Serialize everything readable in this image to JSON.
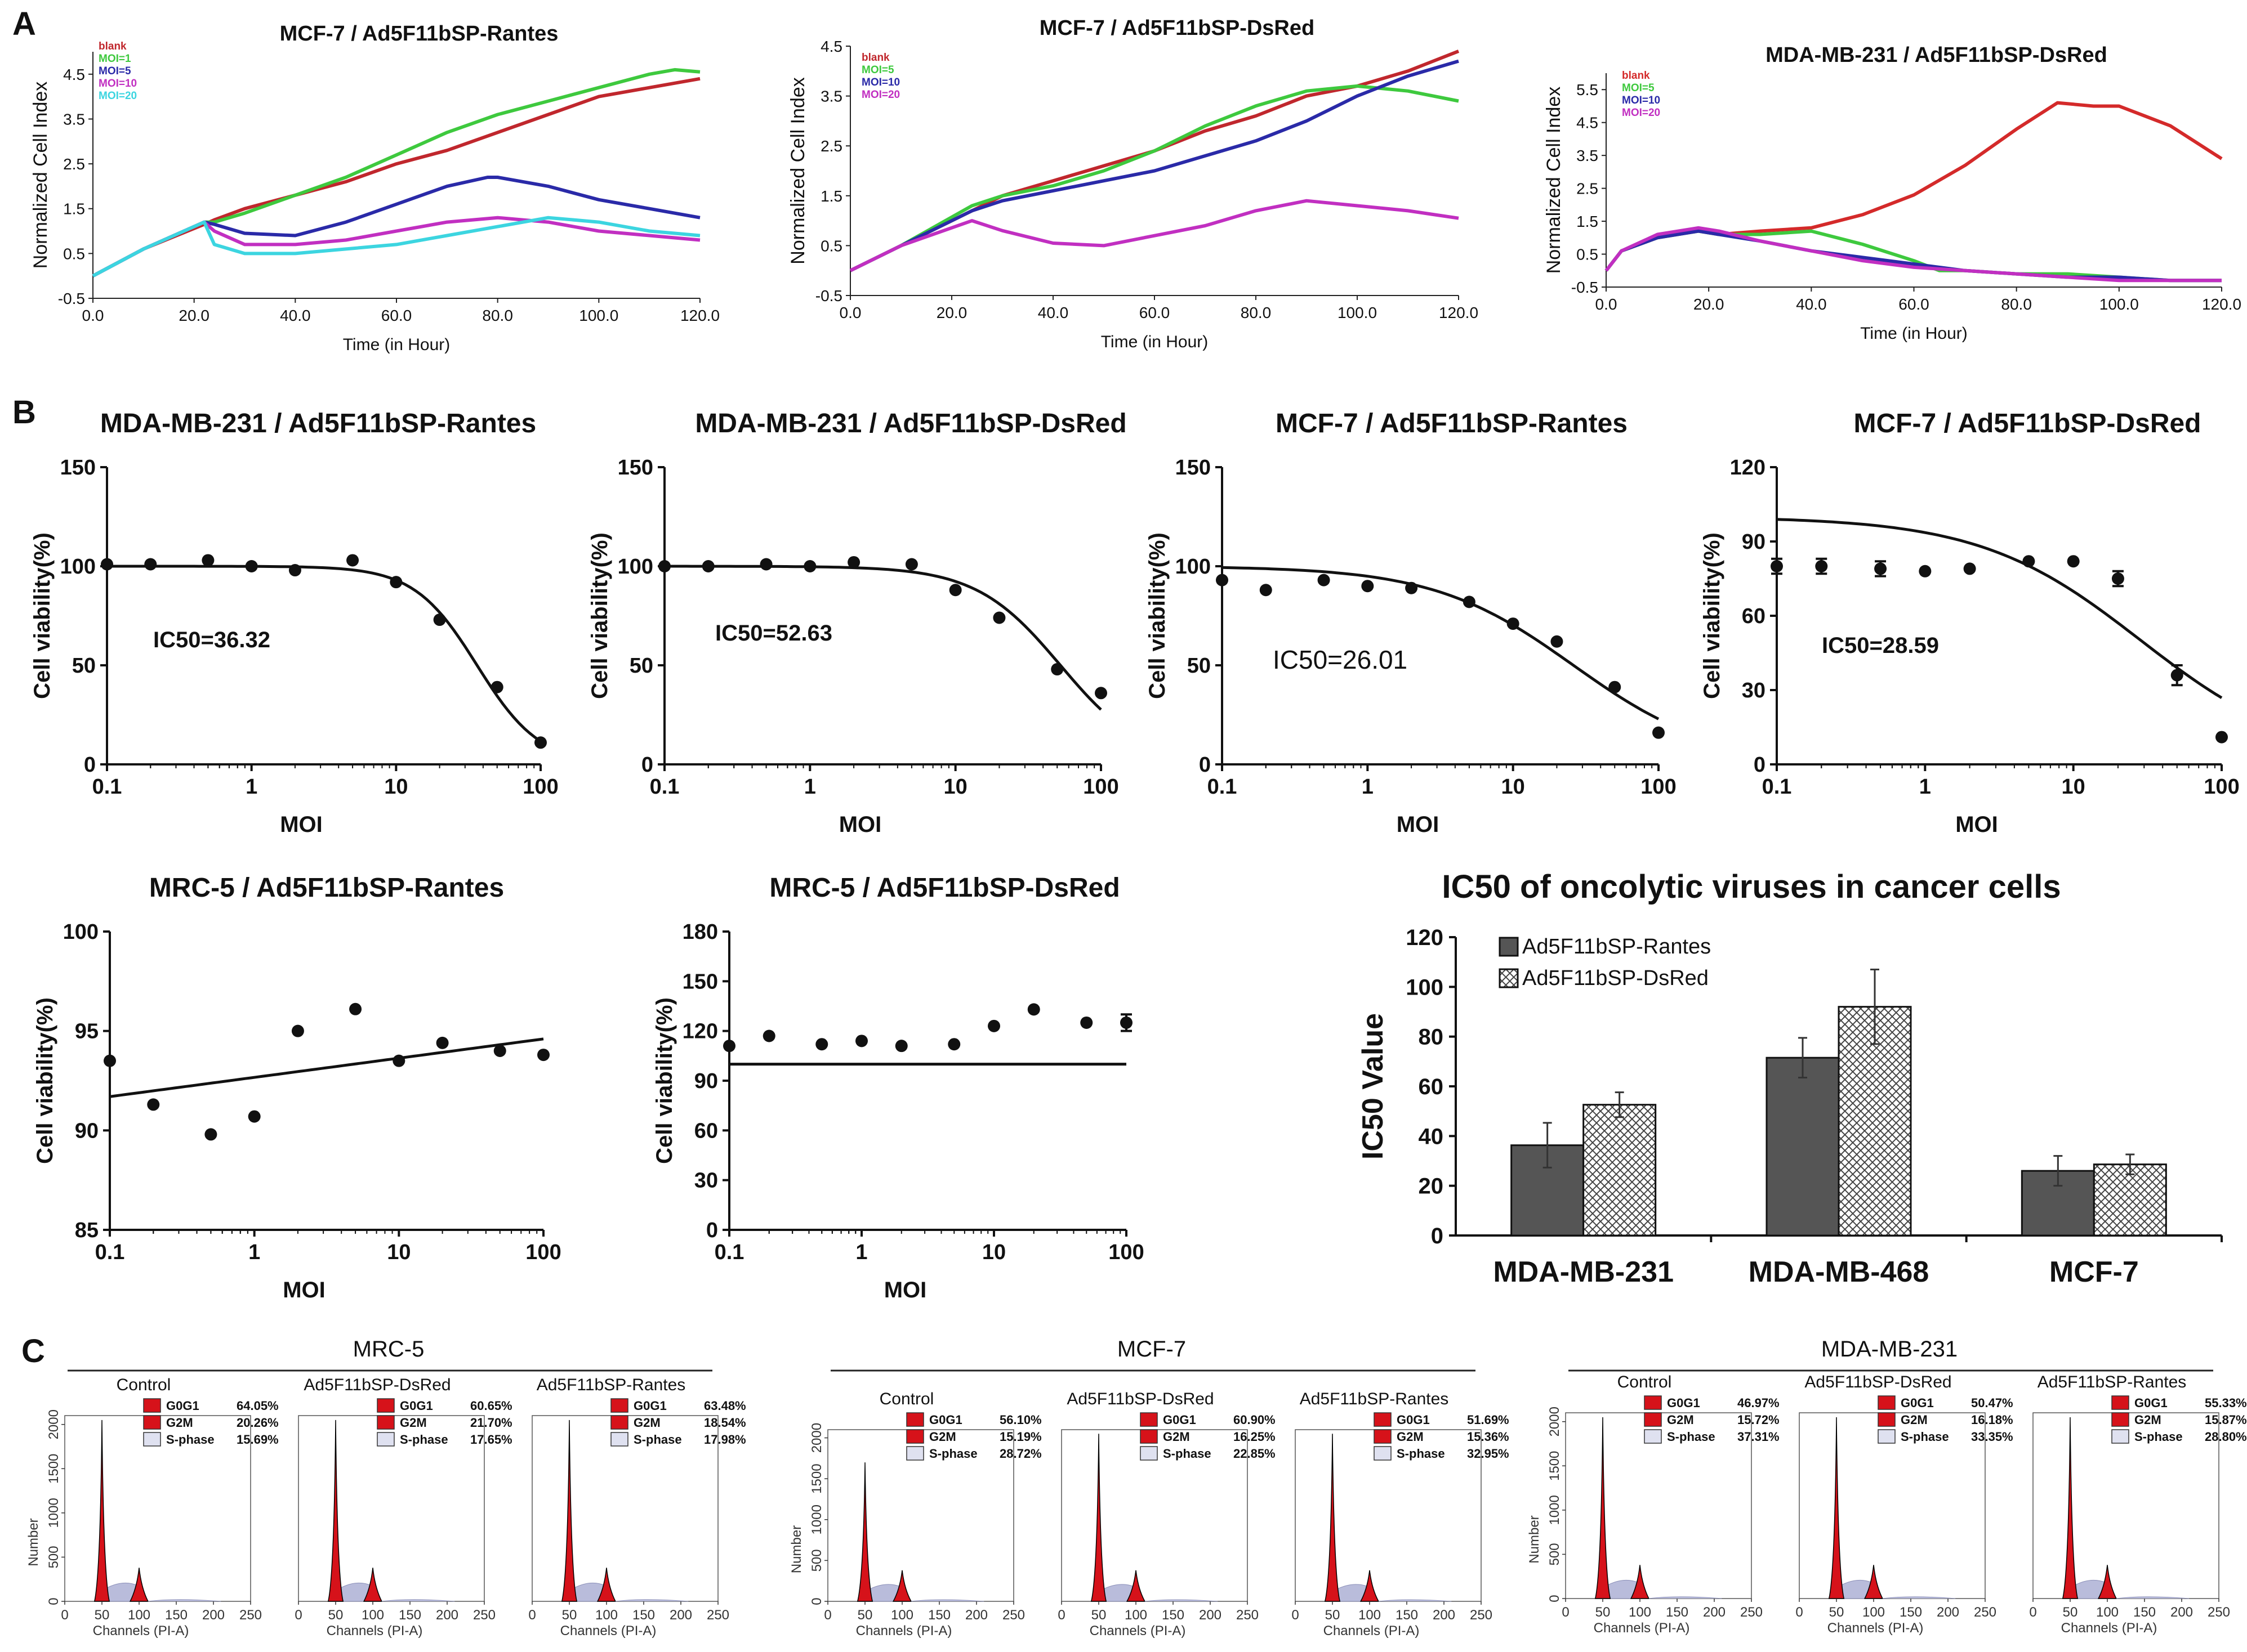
{
  "figure": {
    "panel_labels": [
      "A",
      "B",
      "C"
    ]
  },
  "chart_data": [
    {
      "id": "A1",
      "type": "line",
      "title": "MCF-7 / Ad5F11bSP-Rantes",
      "xlabel": "Time (in Hour)",
      "ylabel": "Normalized Cell Index",
      "xlim": [
        0,
        120
      ],
      "ylim": [
        -0.5,
        5.0
      ],
      "xticks": [
        "0.0",
        "20.0",
        "40.0",
        "60.0",
        "80.0",
        "100.0",
        "120.0"
      ],
      "yticks": [
        "-0.5",
        "0.5",
        "1.5",
        "2.5",
        "3.5",
        "4.5"
      ],
      "series": [
        {
          "name": "blank",
          "color": "#c0272d",
          "x": [
            0,
            10,
            22,
            24,
            30,
            40,
            50,
            60,
            70,
            80,
            90,
            100,
            110,
            120
          ],
          "y": [
            0,
            0.6,
            1.15,
            1.25,
            1.5,
            1.8,
            2.1,
            2.5,
            2.8,
            3.2,
            3.6,
            4.0,
            4.2,
            4.4
          ]
        },
        {
          "name": "MOI=1",
          "color": "#3ec93e",
          "x": [
            0,
            10,
            22,
            24,
            30,
            40,
            50,
            60,
            70,
            80,
            90,
            100,
            110,
            115,
            120
          ],
          "y": [
            0,
            0.6,
            1.2,
            1.2,
            1.4,
            1.8,
            2.2,
            2.7,
            3.2,
            3.6,
            3.9,
            4.2,
            4.5,
            4.6,
            4.55
          ]
        },
        {
          "name": "MOI=5",
          "color": "#2a2aa8",
          "x": [
            0,
            10,
            22,
            24,
            30,
            40,
            50,
            60,
            70,
            78,
            80,
            90,
            100,
            110,
            120
          ],
          "y": [
            0,
            0.6,
            1.2,
            1.15,
            0.95,
            0.9,
            1.2,
            1.6,
            2.0,
            2.2,
            2.2,
            2.0,
            1.7,
            1.5,
            1.3
          ]
        },
        {
          "name": "MOI=10",
          "color": "#c12fc1",
          "x": [
            0,
            10,
            22,
            24,
            30,
            40,
            50,
            60,
            70,
            80,
            90,
            100,
            110,
            120
          ],
          "y": [
            0,
            0.6,
            1.2,
            1.0,
            0.7,
            0.7,
            0.8,
            1.0,
            1.2,
            1.3,
            1.2,
            1.0,
            0.9,
            0.8
          ]
        },
        {
          "name": "MOI=20",
          "color": "#3cd5e0",
          "x": [
            0,
            10,
            22,
            24,
            30,
            40,
            50,
            60,
            70,
            80,
            90,
            100,
            110,
            120
          ],
          "y": [
            0,
            0.6,
            1.2,
            0.7,
            0.5,
            0.5,
            0.6,
            0.7,
            0.9,
            1.1,
            1.3,
            1.2,
            1.0,
            0.9
          ]
        }
      ]
    },
    {
      "id": "A2",
      "type": "line",
      "title": "MCF-7 / Ad5F11bSP-DsRed",
      "xlabel": "Time (in Hour)",
      "ylabel": "Normalized Cell Index",
      "xlim": [
        0,
        120
      ],
      "ylim": [
        -0.5,
        4.5
      ],
      "xticks": [
        "0.0",
        "20.0",
        "40.0",
        "60.0",
        "80.0",
        "100.0",
        "120.0"
      ],
      "yticks": [
        "-0.5",
        "0.5",
        "1.5",
        "2.5",
        "3.5",
        "4.5"
      ],
      "series": [
        {
          "name": "blank",
          "color": "#c0272d",
          "x": [
            0,
            10,
            24,
            30,
            40,
            50,
            60,
            70,
            80,
            90,
            100,
            110,
            120
          ],
          "y": [
            0,
            0.5,
            1.2,
            1.5,
            1.8,
            2.1,
            2.4,
            2.8,
            3.1,
            3.5,
            3.7,
            4.0,
            4.4
          ]
        },
        {
          "name": "MOI=5",
          "color": "#3ec93e",
          "x": [
            0,
            10,
            24,
            30,
            40,
            50,
            60,
            70,
            80,
            90,
            100,
            110,
            120
          ],
          "y": [
            0,
            0.5,
            1.3,
            1.5,
            1.7,
            2.0,
            2.4,
            2.9,
            3.3,
            3.6,
            3.7,
            3.6,
            3.4
          ]
        },
        {
          "name": "MOI=10",
          "color": "#2a2aa8",
          "x": [
            0,
            10,
            24,
            30,
            40,
            50,
            60,
            70,
            80,
            90,
            100,
            110,
            120
          ],
          "y": [
            0,
            0.5,
            1.2,
            1.4,
            1.6,
            1.8,
            2.0,
            2.3,
            2.6,
            3.0,
            3.5,
            3.9,
            4.2
          ]
        },
        {
          "name": "MOI=20",
          "color": "#c12fc1",
          "x": [
            0,
            10,
            24,
            30,
            40,
            50,
            60,
            70,
            80,
            90,
            100,
            110,
            120
          ],
          "y": [
            0,
            0.5,
            1.0,
            0.8,
            0.55,
            0.5,
            0.7,
            0.9,
            1.2,
            1.4,
            1.3,
            1.2,
            1.05
          ]
        }
      ]
    },
    {
      "id": "A3",
      "type": "line",
      "title": "MDA-MB-231 / Ad5F11bSP-DsRed",
      "xlabel": "Time (in Hour)",
      "ylabel": "Normalized Cell Index",
      "xlim": [
        0,
        120
      ],
      "ylim": [
        -0.5,
        6.0
      ],
      "xticks": [
        "0.0",
        "20.0",
        "40.0",
        "60.0",
        "80.0",
        "100.0",
        "120.0"
      ],
      "yticks": [
        "-0.5",
        "0.5",
        "1.5",
        "2.5",
        "3.5",
        "4.5",
        "5.5"
      ],
      "series": [
        {
          "name": "blank",
          "color": "#d42a2a",
          "x": [
            0,
            3,
            10,
            18,
            22,
            30,
            40,
            50,
            60,
            70,
            80,
            88,
            95,
            100,
            110,
            120
          ],
          "y": [
            0,
            0.6,
            1.0,
            1.2,
            1.1,
            1.2,
            1.3,
            1.7,
            2.3,
            3.2,
            4.3,
            5.1,
            5.0,
            5.0,
            4.4,
            3.4
          ]
        },
        {
          "name": "MOI=5",
          "color": "#3ec93e",
          "x": [
            0,
            3,
            10,
            18,
            22,
            30,
            40,
            50,
            60,
            65,
            70,
            80,
            90,
            100,
            110,
            120
          ],
          "y": [
            0,
            0.6,
            1.0,
            1.2,
            1.1,
            1.1,
            1.2,
            0.8,
            0.3,
            0.0,
            0.0,
            -0.1,
            -0.1,
            -0.2,
            -0.3,
            -0.3
          ]
        },
        {
          "name": "MOI=10",
          "color": "#2a2aa8",
          "x": [
            0,
            3,
            10,
            18,
            22,
            30,
            40,
            50,
            60,
            70,
            80,
            90,
            100,
            110,
            120
          ],
          "y": [
            0,
            0.6,
            1.0,
            1.2,
            1.1,
            0.9,
            0.6,
            0.4,
            0.2,
            0.0,
            -0.1,
            -0.2,
            -0.2,
            -0.3,
            -0.3
          ]
        },
        {
          "name": "MOI=20",
          "color": "#c12fc1",
          "x": [
            0,
            3,
            10,
            18,
            22,
            30,
            40,
            50,
            60,
            70,
            80,
            90,
            100,
            110,
            120
          ],
          "y": [
            0,
            0.6,
            1.1,
            1.3,
            1.2,
            0.9,
            0.6,
            0.3,
            0.1,
            0.0,
            -0.1,
            -0.2,
            -0.3,
            -0.3,
            -0.3
          ]
        }
      ]
    },
    {
      "id": "B1",
      "type": "scatter",
      "title": "MDA-MB-231 / Ad5F11bSP-Rantes",
      "xlabel": "MOI",
      "ylabel": "Cell viability(%)",
      "xscale": "log",
      "xlim": [
        0.1,
        100
      ],
      "ylim": [
        0,
        150
      ],
      "xticks": [
        "0.1",
        "1",
        "10",
        "100"
      ],
      "yticks": [
        "0",
        "50",
        "100",
        "150"
      ],
      "annotation": "IC50=36.32",
      "points": {
        "x": [
          0.1,
          0.2,
          0.5,
          1,
          2,
          5,
          10,
          20,
          50,
          100
        ],
        "y": [
          101,
          101,
          103,
          100,
          98,
          103,
          92,
          73,
          39,
          11
        ]
      },
      "fit": {
        "type": "logistic",
        "top": 100,
        "ic50": 36.32,
        "hill": 2.0
      }
    },
    {
      "id": "B2",
      "type": "scatter",
      "title": "MDA-MB-231 / Ad5F11bSP-DsRed",
      "xlabel": "MOI",
      "ylabel": "Cell viability(%)",
      "xscale": "log",
      "xlim": [
        0.1,
        100
      ],
      "ylim": [
        0,
        150
      ],
      "xticks": [
        "0.1",
        "1",
        "10",
        "100"
      ],
      "yticks": [
        "0",
        "50",
        "100",
        "150"
      ],
      "annotation": "IC50=52.63",
      "points": {
        "x": [
          0.1,
          0.2,
          0.5,
          1,
          2,
          5,
          10,
          20,
          50,
          100
        ],
        "y": [
          100,
          100,
          101,
          100,
          102,
          101,
          88,
          74,
          48,
          36
        ]
      },
      "fit": {
        "type": "logistic",
        "top": 100,
        "ic50": 52.63,
        "hill": 1.5
      }
    },
    {
      "id": "B3",
      "type": "scatter",
      "title": "MCF-7 / Ad5F11bSP-Rantes",
      "xlabel": "MOI",
      "ylabel": "Cell viability(%)",
      "xscale": "log",
      "xlim": [
        0.1,
        100
      ],
      "ylim": [
        0,
        150
      ],
      "xticks": [
        "0.1",
        "1",
        "10",
        "100"
      ],
      "yticks": [
        "0",
        "50",
        "100",
        "150"
      ],
      "annotation": "IC50=26.01",
      "points": {
        "x": [
          0.1,
          0.2,
          0.5,
          1,
          2,
          5,
          10,
          20,
          50,
          100
        ],
        "y": [
          93,
          88,
          93,
          90,
          89,
          82,
          71,
          62,
          39,
          16
        ]
      },
      "fit": {
        "type": "logistic",
        "top": 100,
        "ic50": 26.01,
        "hill": 0.9
      }
    },
    {
      "id": "B4",
      "type": "scatter",
      "title": "MCF-7 / Ad5F11bSP-DsRed",
      "xlabel": "MOI",
      "ylabel": "Cell viability(%)",
      "xscale": "log",
      "xlim": [
        0.1,
        100
      ],
      "ylim": [
        0,
        120
      ],
      "xticks": [
        "0.1",
        "1",
        "10",
        "100"
      ],
      "yticks": [
        "0",
        "30",
        "60",
        "90",
        "120"
      ],
      "annotation": "IC50=28.59",
      "points": {
        "x": [
          0.1,
          0.2,
          0.5,
          1,
          2,
          5,
          10,
          20,
          50,
          100
        ],
        "y": [
          80,
          80,
          79,
          78,
          79,
          82,
          82,
          75,
          36,
          11
        ],
        "err": [
          3,
          3,
          3,
          0,
          0,
          0,
          0,
          3,
          4,
          0
        ]
      },
      "fit": {
        "type": "logistic",
        "top": 100,
        "ic50": 28.59,
        "hill": 0.8
      }
    },
    {
      "id": "B5",
      "type": "scatter",
      "title": "MRC-5 / Ad5F11bSP-Rantes",
      "xlabel": "MOI",
      "ylabel": "Cell viability(%)",
      "xscale": "log",
      "xlim": [
        0.1,
        100
      ],
      "ylim": [
        85,
        100
      ],
      "xticks": [
        "0.1",
        "1",
        "10",
        "100"
      ],
      "yticks": [
        "85",
        "90",
        "95",
        "100"
      ],
      "points": {
        "x": [
          0.1,
          0.2,
          0.5,
          1,
          2,
          5,
          10,
          20,
          50,
          100
        ],
        "y": [
          93.5,
          91.3,
          89.8,
          90.7,
          95,
          96.1,
          93.5,
          94.4,
          94,
          93.8
        ]
      },
      "fit": {
        "type": "linear",
        "y_at_xmin": 91.7,
        "y_at_xmax": 94.6
      }
    },
    {
      "id": "B6",
      "type": "scatter",
      "title": "MRC-5 / Ad5F11bSP-DsRed",
      "xlabel": "MOI",
      "ylabel": "Cell viability(%)",
      "xscale": "log",
      "xlim": [
        0.1,
        100
      ],
      "ylim": [
        0,
        180
      ],
      "xticks": [
        "0.1",
        "1",
        "10",
        "100"
      ],
      "yticks": [
        "0",
        "30",
        "60",
        "90",
        "120",
        "150",
        "180"
      ],
      "points": {
        "x": [
          0.1,
          0.2,
          0.5,
          1,
          2,
          5,
          10,
          20,
          50,
          100
        ],
        "y": [
          111,
          117,
          112,
          114,
          111,
          112,
          123,
          133,
          125,
          125
        ],
        "err": [
          0,
          0,
          0,
          0,
          0,
          0,
          0,
          0,
          0,
          5
        ]
      },
      "fit": {
        "type": "linear",
        "y_at_xmin": 100,
        "y_at_xmax": 100
      }
    },
    {
      "id": "B7",
      "type": "bar",
      "title": "IC50 of oncolytic viruses in cancer cells",
      "ylabel": "IC50 Value",
      "ylim": [
        0,
        120
      ],
      "yticks": [
        "0",
        "20",
        "40",
        "60",
        "80",
        "100",
        "120"
      ],
      "categories": [
        "MDA-MB-231",
        "MDA-MB-468",
        "MCF-7"
      ],
      "series": [
        {
          "name": "Ad5F11bSP-Rantes",
          "values": [
            36.3,
            71.5,
            26.0
          ],
          "err": [
            9,
            8,
            6
          ]
        },
        {
          "name": "Ad5F11bSP-DsRed",
          "values": [
            52.6,
            92.0,
            28.6
          ],
          "err": [
            5,
            15,
            4
          ]
        }
      ]
    },
    {
      "id": "C",
      "type": "histogram",
      "xlabel": "Channels (PI-A)",
      "ylabel": "Number",
      "xticks": [
        "0",
        "50",
        "100",
        "150",
        "200",
        "250"
      ],
      "yticks": [
        "0",
        "500",
        "1000",
        "1500",
        "2000"
      ],
      "legend_labels": [
        "G0G1",
        "G2M",
        "S-phase"
      ],
      "groups": [
        {
          "title": "MRC-5",
          "panels": [
            {
              "title": "Control",
              "G0G1": "64.05%",
              "G2M": "20.26%",
              "S": "15.69%"
            },
            {
              "title": "Ad5F11bSP-DsRed",
              "G0G1": "60.65%",
              "G2M": "21.70%",
              "S": "17.65%"
            },
            {
              "title": "Ad5F11bSP-Rantes",
              "G0G1": "63.48%",
              "G2M": "18.54%",
              "S": "17.98%"
            }
          ]
        },
        {
          "title": "MCF-7",
          "panels": [
            {
              "title": "Control",
              "G0G1": "56.10%",
              "G2M": "15.19%",
              "S": "28.72%"
            },
            {
              "title": "Ad5F11bSP-DsRed",
              "G0G1": "60.90%",
              "G2M": "16.25%",
              "S": "22.85%"
            },
            {
              "title": "Ad5F11bSP-Rantes",
              "G0G1": "51.69%",
              "G2M": "15.36%",
              "S": "32.95%"
            }
          ]
        },
        {
          "title": "MDA-MB-231",
          "panels": [
            {
              "title": "Control",
              "G0G1": "46.97%",
              "G2M": "15.72%",
              "S": "37.31%"
            },
            {
              "title": "Ad5F11bSP-DsRed",
              "G0G1": "50.47%",
              "G2M": "16.18%",
              "S": "33.35%"
            },
            {
              "title": "Ad5F11bSP-Rantes",
              "G0G1": "55.33%",
              "G2M": "15.87%",
              "S": "28.80%"
            }
          ]
        }
      ]
    }
  ]
}
